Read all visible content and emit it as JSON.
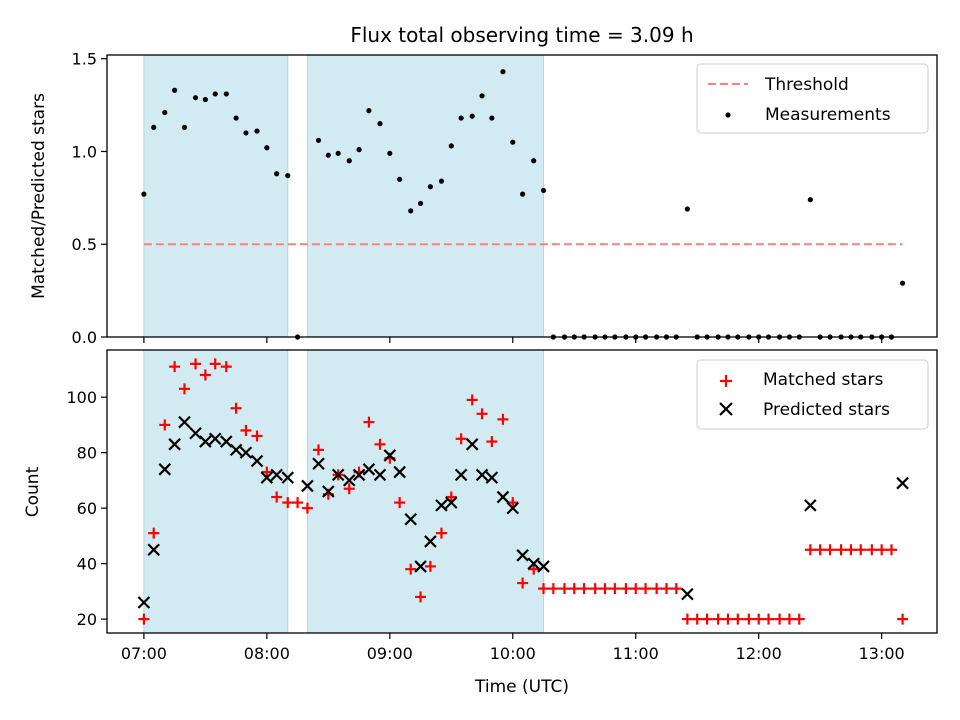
{
  "chart_data": {
    "title": "Flux total observing time = 3.09 h",
    "xlabel": "Time (UTC)",
    "xlim_hours": [
      6.7,
      13.45
    ],
    "xticks": [
      {
        "h": 7,
        "label": "07:00"
      },
      {
        "h": 8,
        "label": "08:00"
      },
      {
        "h": 9,
        "label": "09:00"
      },
      {
        "h": 10,
        "label": "10:00"
      },
      {
        "h": 11,
        "label": "11:00"
      },
      {
        "h": 12,
        "label": "12:00"
      },
      {
        "h": 13,
        "label": "13:00"
      }
    ],
    "shaded_intervals_hours": [
      [
        7.0,
        8.17
      ],
      [
        8.33,
        10.25
      ]
    ],
    "shade_color": "#add8e6",
    "top": {
      "type": "scatter",
      "ylabel": "Matched/Predicted stars",
      "ylim": [
        0,
        1.52
      ],
      "yticks": [
        {
          "v": 0,
          "label": "0.0"
        },
        {
          "v": 0.5,
          "label": "0.5"
        },
        {
          "v": 1.0,
          "label": "1.0"
        },
        {
          "v": 1.5,
          "label": "1.5"
        }
      ],
      "threshold": {
        "name": "Threshold",
        "value": 0.5,
        "x_range": [
          7.0,
          13.17
        ],
        "color": "#ff7f7f"
      },
      "measurements": {
        "name": "Measurements",
        "color": "#000000",
        "x": [
          7.0,
          7.08,
          7.17,
          7.25,
          7.33,
          7.42,
          7.5,
          7.58,
          7.67,
          7.75,
          7.83,
          7.92,
          8.0,
          8.08,
          8.17,
          8.25,
          8.42,
          8.5,
          8.58,
          8.67,
          8.75,
          8.83,
          8.92,
          9.0,
          9.08,
          9.17,
          9.25,
          9.33,
          9.42,
          9.5,
          9.58,
          9.67,
          9.75,
          9.83,
          9.92,
          10.0,
          10.08,
          10.17,
          10.25,
          10.33,
          10.42,
          10.5,
          10.58,
          10.67,
          10.75,
          10.83,
          10.92,
          11.0,
          11.08,
          11.17,
          11.25,
          11.33,
          11.42,
          11.5,
          11.58,
          11.67,
          11.75,
          11.83,
          11.92,
          12.0,
          12.08,
          12.17,
          12.25,
          12.33,
          12.42,
          12.5,
          12.58,
          12.67,
          12.75,
          12.83,
          12.92,
          13.0,
          13.08,
          13.17
        ],
        "y": [
          0.77,
          1.13,
          1.21,
          1.33,
          1.13,
          1.29,
          1.28,
          1.31,
          1.31,
          1.18,
          1.1,
          1.11,
          1.02,
          0.88,
          0.87,
          0.0,
          1.06,
          0.98,
          0.99,
          0.95,
          1.01,
          1.22,
          1.15,
          0.99,
          0.85,
          0.68,
          0.72,
          0.81,
          0.84,
          1.03,
          1.18,
          1.19,
          1.3,
          1.18,
          1.43,
          1.05,
          0.77,
          0.95,
          0.79,
          0.0,
          0.0,
          0.0,
          0.0,
          0.0,
          0.0,
          0.0,
          0.0,
          0.0,
          0.0,
          0.0,
          0.0,
          0.0,
          0.69,
          0.0,
          0.0,
          0.0,
          0.0,
          0.0,
          0.0,
          0.0,
          0.0,
          0.0,
          0.0,
          0.0,
          0.74,
          0.0,
          0.0,
          0.0,
          0.0,
          0.0,
          0.0,
          0.0,
          0.0,
          0.29
        ]
      }
    },
    "bottom": {
      "type": "scatter",
      "ylabel": "Count",
      "ylim": [
        15,
        117
      ],
      "yticks": [
        {
          "v": 20,
          "label": "20"
        },
        {
          "v": 40,
          "label": "40"
        },
        {
          "v": 60,
          "label": "60"
        },
        {
          "v": 80,
          "label": "80"
        },
        {
          "v": 100,
          "label": "100"
        }
      ],
      "matched": {
        "name": "Matched stars",
        "color": "#ff0000",
        "x": [
          7.0,
          7.08,
          7.17,
          7.25,
          7.33,
          7.42,
          7.5,
          7.58,
          7.67,
          7.75,
          7.83,
          7.92,
          8.0,
          8.08,
          8.17,
          8.25,
          8.33,
          8.42,
          8.5,
          8.58,
          8.67,
          8.75,
          8.83,
          8.92,
          9.0,
          9.08,
          9.17,
          9.25,
          9.33,
          9.42,
          9.5,
          9.58,
          9.67,
          9.75,
          9.83,
          9.92,
          10.0,
          10.08,
          10.17,
          10.25,
          10.33,
          10.42,
          10.5,
          10.58,
          10.67,
          10.75,
          10.83,
          10.92,
          11.0,
          11.08,
          11.17,
          11.25,
          11.33,
          11.42,
          11.5,
          11.58,
          11.67,
          11.75,
          11.83,
          11.92,
          12.0,
          12.08,
          12.17,
          12.25,
          12.33,
          12.42,
          12.5,
          12.58,
          12.67,
          12.75,
          12.83,
          12.92,
          13.0,
          13.08,
          13.17
        ],
        "y": [
          20,
          51,
          90,
          111,
          103,
          112,
          108,
          112,
          111,
          96,
          88,
          86,
          73,
          64,
          62,
          62,
          60,
          81,
          65,
          72,
          67,
          73,
          91,
          83,
          78,
          62,
          38,
          28,
          39,
          51,
          64,
          85,
          99,
          94,
          84,
          92,
          62,
          33,
          38,
          31,
          31,
          31,
          31,
          31,
          31,
          31,
          31,
          31,
          31,
          31,
          31,
          31,
          31,
          20,
          20,
          20,
          20,
          20,
          20,
          20,
          20,
          20,
          20,
          20,
          20,
          45,
          45,
          45,
          45,
          45,
          45,
          45,
          45,
          45,
          20
        ]
      },
      "predicted": {
        "name": "Predicted stars",
        "color": "#000000",
        "x": [
          7.0,
          7.08,
          7.17,
          7.25,
          7.33,
          7.42,
          7.5,
          7.58,
          7.67,
          7.75,
          7.83,
          7.92,
          8.0,
          8.08,
          8.17,
          8.33,
          8.42,
          8.5,
          8.58,
          8.67,
          8.75,
          8.83,
          8.92,
          9.0,
          9.08,
          9.17,
          9.25,
          9.33,
          9.42,
          9.5,
          9.58,
          9.67,
          9.75,
          9.83,
          9.92,
          10.0,
          10.08,
          10.17,
          10.25,
          11.42,
          12.42,
          13.17
        ],
        "y": [
          26,
          45,
          74,
          83,
          91,
          87,
          84,
          85,
          84,
          81,
          80,
          77,
          71,
          72,
          71,
          68,
          76,
          66,
          72,
          70,
          72,
          74,
          72,
          79,
          73,
          56,
          39,
          48,
          61,
          62,
          72,
          83,
          72,
          71,
          64,
          60,
          43,
          40,
          39,
          29,
          61,
          69
        ]
      }
    }
  }
}
